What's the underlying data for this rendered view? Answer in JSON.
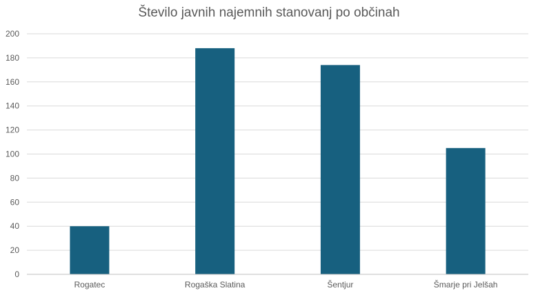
{
  "chart_data": {
    "type": "bar",
    "title": "Število javnih najemnih stanovanj po občinah",
    "categories": [
      "Rogatec",
      "Rogaška Slatina",
      "Šentjur",
      "Šmarje pri Jelšah"
    ],
    "values": [
      40,
      188,
      174,
      105
    ],
    "ylim": [
      0,
      200
    ],
    "yticks": [
      0,
      20,
      40,
      60,
      80,
      100,
      120,
      140,
      160,
      180,
      200
    ],
    "grid": true,
    "legend": "none",
    "bar_color": "#17607f",
    "grid_color": "#d9d9d9",
    "axis_color": "#bfbfbf"
  }
}
